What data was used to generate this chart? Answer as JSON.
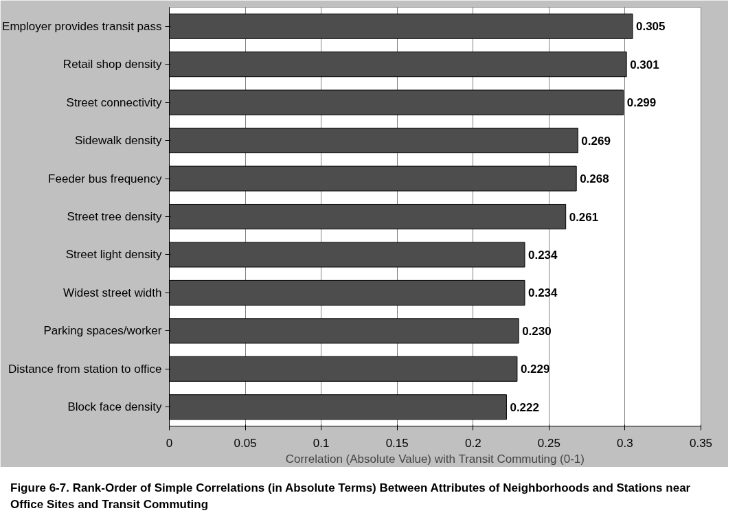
{
  "chart_data": {
    "type": "bar",
    "orientation": "horizontal",
    "title": "Figure 6-7. Rank-Order of Simple Correlations (in Absolute Terms) Between Attributes of Neighborhoods and Stations near Office Sites and Transit Commuting",
    "xlabel": "Correlation (Absolute Value) with Transit Commuting (0-1)",
    "categories": [
      "Employer provides transit pass",
      "Retail shop density",
      "Street connectivity",
      "Sidewalk density",
      "Feeder bus frequency",
      "Street tree density",
      "Street light density",
      "Widest street width",
      "Parking spaces/worker",
      "Distance from station to office",
      "Block face density"
    ],
    "values": [
      0.305,
      0.301,
      0.299,
      0.269,
      0.268,
      0.261,
      0.234,
      0.234,
      0.23,
      0.229,
      0.222
    ],
    "value_labels": [
      "0.305",
      "0.301",
      "0.299",
      "0.269",
      "0.268",
      "0.261",
      "0.234",
      "0.234",
      "0.230",
      "0.229",
      "0.222"
    ],
    "color": "#4d4d4d",
    "xlim": [
      0,
      0.35
    ],
    "xticks": [
      0,
      0.05,
      0.1,
      0.15,
      0.2,
      0.25,
      0.3,
      0.35
    ],
    "grid": "x",
    "data_labels": true
  }
}
